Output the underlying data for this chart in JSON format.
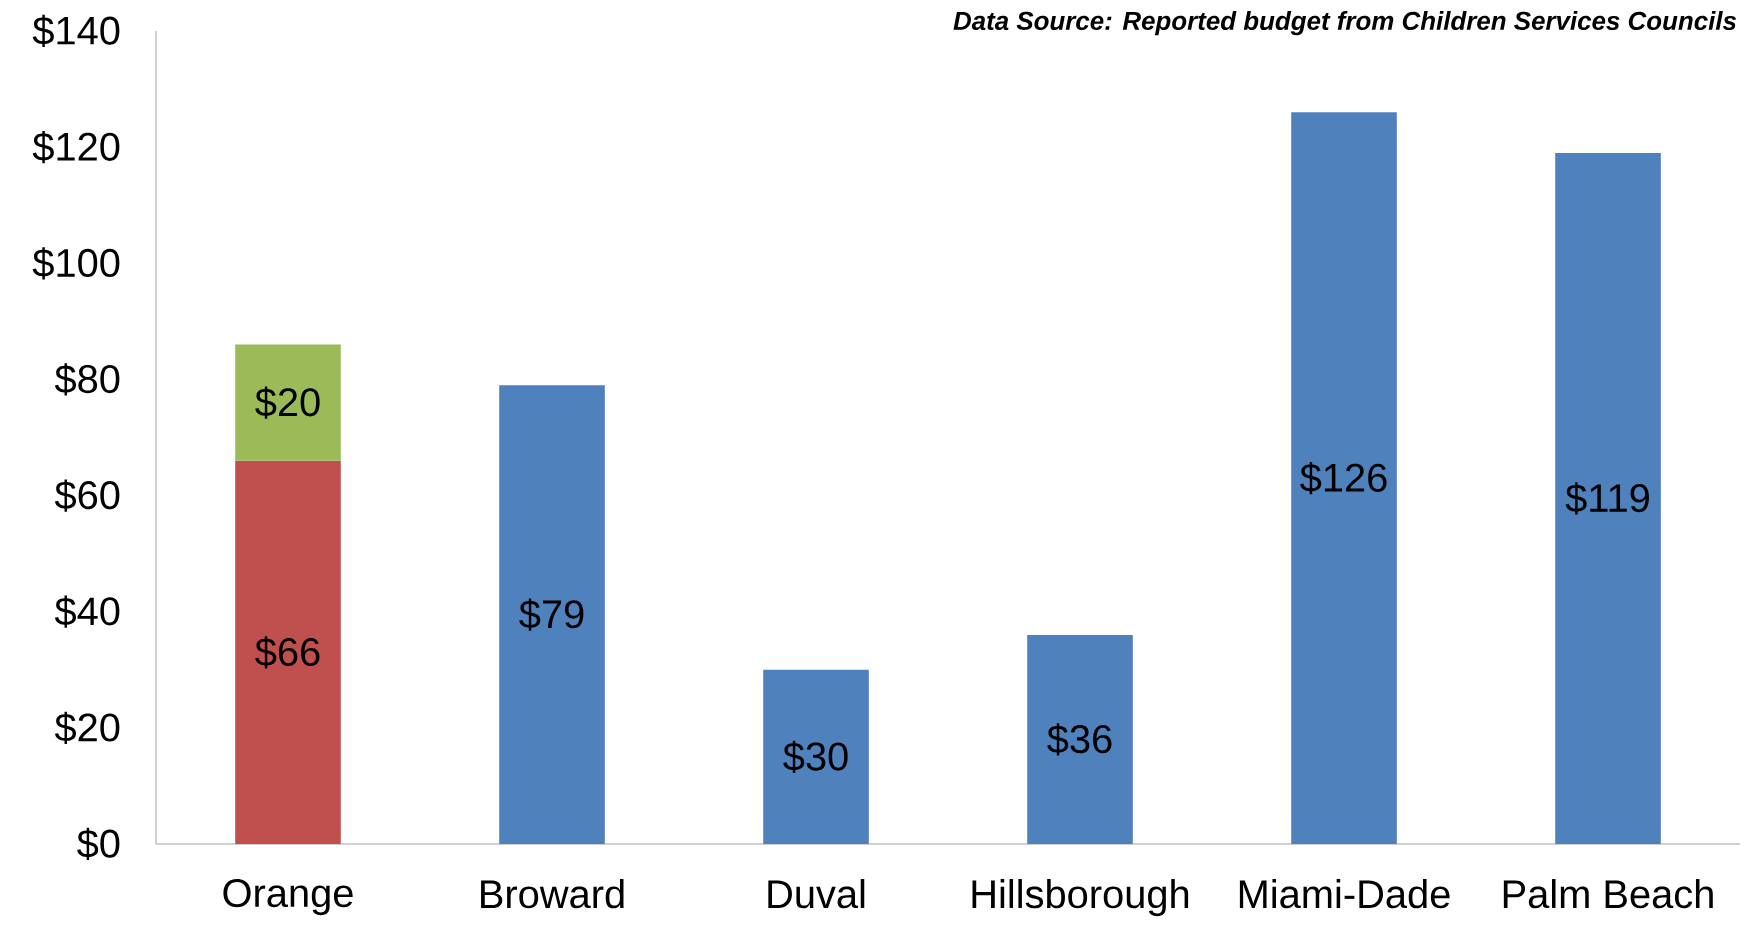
{
  "chart_data": {
    "type": "bar",
    "stacked": true,
    "categories": [
      "Orange",
      "Broward",
      "Duval",
      "Hillsborough",
      "Miami-Dade",
      "Palm Beach"
    ],
    "series": [
      {
        "color": "#c0504d",
        "values": [
          66,
          null,
          null,
          null,
          null,
          null
        ],
        "value_labels": [
          "$66",
          null,
          null,
          null,
          null,
          null
        ]
      },
      {
        "color": "#9bbb59",
        "values": [
          20,
          null,
          null,
          null,
          null,
          null
        ],
        "value_labels": [
          "$20",
          null,
          null,
          null,
          null,
          null
        ]
      },
      {
        "color": "#4f81bd",
        "values": [
          null,
          79,
          30,
          36,
          126,
          119
        ],
        "value_labels": [
          null,
          "$79",
          "$30",
          "$36",
          "$126",
          "$119"
        ]
      }
    ],
    "ylim": [
      0,
      140
    ],
    "yticks": [
      {
        "value": 0,
        "label": "$0"
      },
      {
        "value": 20,
        "label": "$20"
      },
      {
        "value": 40,
        "label": "$40"
      },
      {
        "value": 60,
        "label": "$60"
      },
      {
        "value": 80,
        "label": "$80"
      },
      {
        "value": 100,
        "label": "$100"
      },
      {
        "value": 120,
        "label": "$120"
      },
      {
        "value": 140,
        "label": "$140"
      }
    ],
    "annotations": [
      "Data Source: Reported budget from  Children Services Councils"
    ],
    "grid": false
  }
}
